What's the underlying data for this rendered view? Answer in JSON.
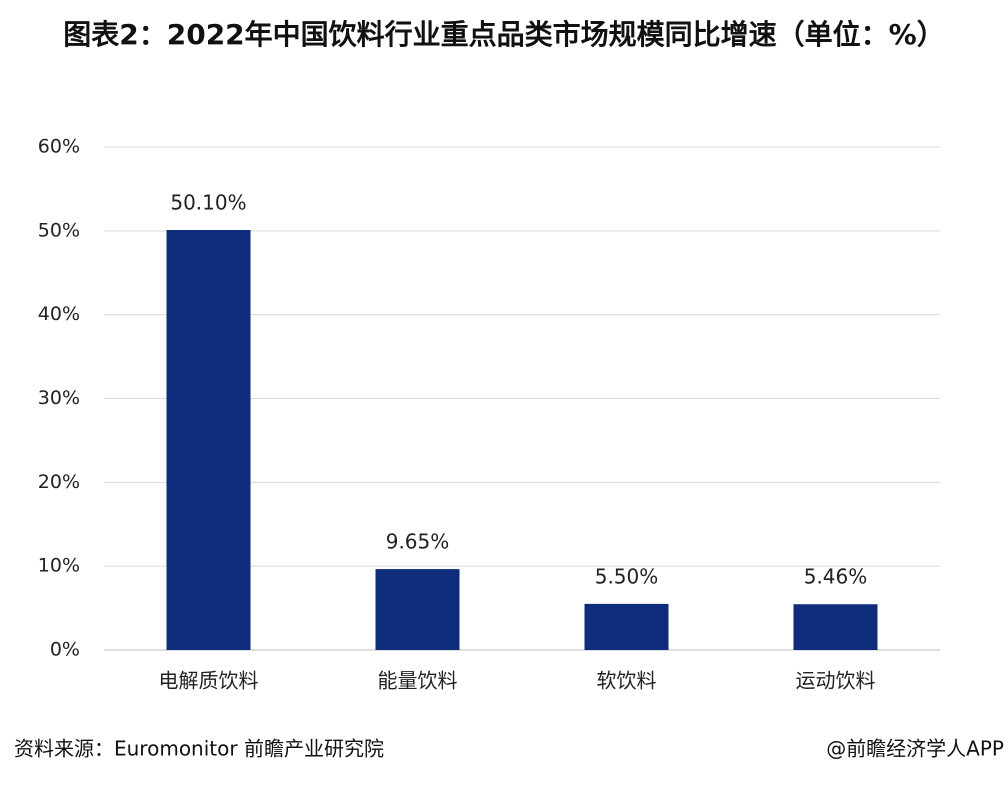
{
  "chart_data": {
    "type": "bar",
    "title": "图表2：2022年中国饮料行业重点品类市场规模同比增速（单位：%）",
    "categories": [
      "电解质饮料",
      "能量饮料",
      "软饮料",
      "运动饮料"
    ],
    "values": [
      50.1,
      9.65,
      5.5,
      5.46
    ],
    "value_labels": [
      "50.10%",
      "9.65%",
      "5.50%",
      "5.46%"
    ],
    "color": "#0f2c7c",
    "ylim": [
      0,
      60
    ],
    "yticks": [
      {
        "value": 0,
        "label": "0%"
      },
      {
        "value": 10,
        "label": "10%"
      },
      {
        "value": 20,
        "label": "20%"
      },
      {
        "value": 30,
        "label": "30%"
      },
      {
        "value": 40,
        "label": "40%"
      },
      {
        "value": 50,
        "label": "50%"
      },
      {
        "value": 60,
        "label": "60%"
      }
    ],
    "grid": true,
    "source": "资料来源：Euromonitor 前瞻产业研究院",
    "credit": "@前瞻经济学人APP"
  }
}
